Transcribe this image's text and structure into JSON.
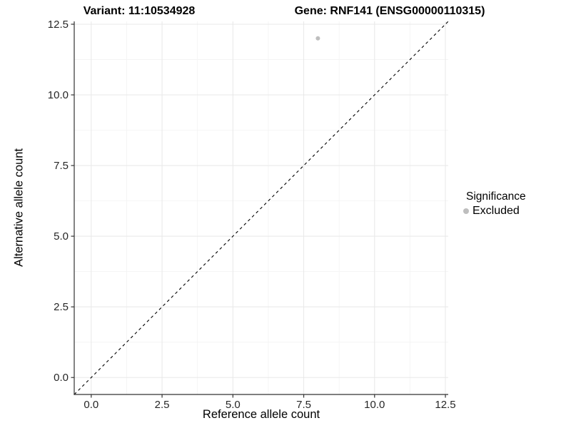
{
  "header": {
    "title_left": "Variant: 11:10534928",
    "title_right": "Gene: RNF141 (ENSG00000110315)"
  },
  "chart_data": {
    "type": "scatter",
    "xlabel": "Reference allele count",
    "ylabel": "Alternative allele count",
    "xlim": [
      -0.6,
      12.6
    ],
    "ylim": [
      -0.6,
      12.6
    ],
    "xticks": {
      "values": [
        0,
        2.5,
        5,
        7.5,
        10,
        12.5
      ],
      "labels": [
        "0.0",
        "2.5",
        "5.0",
        "7.5",
        "10.0",
        "12.5"
      ]
    },
    "yticks": {
      "values": [
        0,
        2.5,
        5,
        7.5,
        10,
        12.5
      ],
      "labels": [
        "0.0",
        "2.5",
        "5.0",
        "7.5",
        "10.0",
        "12.5"
      ]
    },
    "grid": {
      "show_minor": true,
      "major_color": "#e8e8e8",
      "minor_color": "#f4f4f4"
    },
    "axis": {
      "line_color": "#333333",
      "tick_color": "#333333",
      "tick_label_color": "#262626"
    },
    "reference_line": {
      "type": "identity",
      "from": [
        -0.6,
        -0.6
      ],
      "to": [
        12.6,
        12.6
      ],
      "style": "dashed",
      "color": "#000000"
    },
    "series": [
      {
        "name": "Excluded",
        "color": "#bebebe",
        "point_radius": 3,
        "points": [
          [
            8,
            12
          ]
        ]
      }
    ],
    "legend": {
      "title": "Significance",
      "position": "right",
      "entries": [
        {
          "label": "Excluded",
          "color": "#bebebe",
          "marker": "circle"
        }
      ]
    }
  }
}
